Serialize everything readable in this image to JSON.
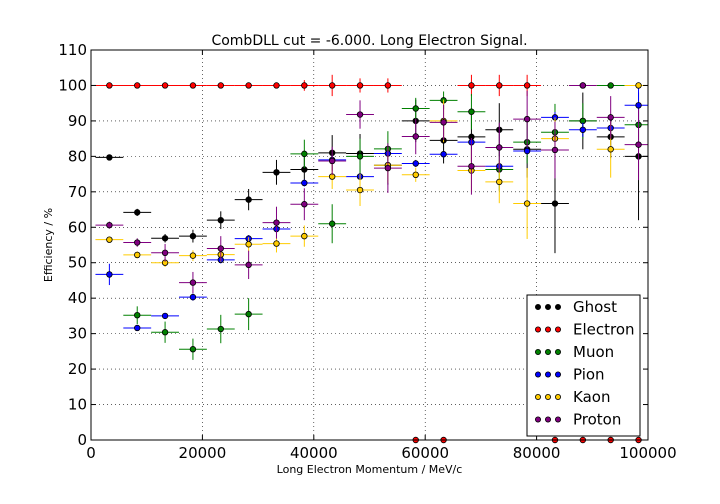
{
  "chart_data": {
    "type": "scatter",
    "title": "CombDLL cut = -6.000. Long Electron Signal.",
    "xlabel": "Long Electron Momentum / MeV/c",
    "ylabel": "Efficiency / %",
    "xlim": [
      0,
      100000
    ],
    "ylim": [
      0,
      110
    ],
    "xticks": [
      0,
      20000,
      40000,
      60000,
      80000,
      100000
    ],
    "yticks": [
      0,
      10,
      20,
      30,
      40,
      50,
      60,
      70,
      80,
      90,
      100,
      110
    ],
    "xerr": 2500,
    "grid": true,
    "legend_position": "bottom-right",
    "series": [
      {
        "name": "Ghost",
        "color": "#000000",
        "x": [
          3300,
          8300,
          13300,
          18300,
          23300,
          28300,
          33300,
          38300,
          43300,
          48300,
          53300,
          58300,
          63300,
          68300,
          73300,
          78300,
          83300,
          88300,
          93300,
          98300
        ],
        "y": [
          79.7,
          64.2,
          56.9,
          57.5,
          62.0,
          67.8,
          75.5,
          76.3,
          81.0,
          80.8,
          77.5,
          90.0,
          84.5,
          85.5,
          87.5,
          82.0,
          66.7,
          90.0,
          85.5,
          80.0
        ],
        "err": [
          0.5,
          1.0,
          1.2,
          1.8,
          2.5,
          3.0,
          3.5,
          4.0,
          5.0,
          5.5,
          5.5,
          6.0,
          6.5,
          7.0,
          7.5,
          8.0,
          14.0,
          8.0,
          6.0,
          18.0
        ]
      },
      {
        "name": "Electron",
        "color": "#ff0000",
        "x": [
          3300,
          8300,
          13300,
          18300,
          23300,
          28300,
          33300,
          38300,
          43300,
          48300,
          53300,
          58300,
          63300,
          68300,
          73300,
          78300,
          83300,
          88300,
          93300,
          98300
        ],
        "y": [
          100,
          100,
          100,
          100,
          100,
          100,
          100,
          100,
          100,
          100,
          100,
          0,
          0,
          100,
          100,
          100,
          0,
          0,
          0,
          0
        ],
        "err": [
          0,
          0,
          0,
          0,
          0,
          0,
          0,
          1.5,
          3.0,
          2.0,
          2.0,
          0,
          0,
          3.0,
          3.0,
          3.0,
          0,
          0,
          0,
          0
        ]
      },
      {
        "name": "Muon",
        "color": "#008000",
        "x": [
          8300,
          13300,
          18300,
          23300,
          28300,
          38300,
          43300,
          48300,
          53300,
          58300,
          63300,
          68300,
          73300,
          78300,
          83300,
          88300,
          93300,
          98300
        ],
        "y": [
          35.2,
          30.4,
          25.6,
          31.3,
          35.5,
          80.7,
          61.0,
          80.0,
          82.1,
          93.5,
          95.8,
          92.6,
          76.3,
          84.0,
          86.8,
          90.0,
          100,
          88.9
        ],
        "err": [
          2.5,
          3.0,
          3.0,
          4.0,
          4.5,
          4.0,
          5.5,
          5.0,
          5.0,
          3.0,
          2.5,
          5.0,
          6.0,
          6.0,
          8.0,
          5.0,
          0,
          6.0
        ]
      },
      {
        "name": "Pion",
        "color": "#0000ff",
        "x": [
          3300,
          8300,
          13300,
          18300,
          23300,
          28300,
          33300,
          38300,
          43300,
          48300,
          53300,
          58300,
          63300,
          68300,
          73300,
          78300,
          83300,
          88300,
          93300,
          98300
        ],
        "y": [
          46.7,
          31.6,
          35.0,
          40.3,
          50.8,
          56.8,
          59.5,
          72.5,
          79.0,
          74.3,
          80.8,
          78.0,
          80.6,
          84.0,
          77.2,
          81.5,
          91.0,
          87.5,
          88.0,
          94.4
        ],
        "err": [
          3.0,
          0.8,
          0.5,
          1.0,
          1.0,
          1.0,
          1.0,
          1.0,
          1.2,
          1.0,
          1.0,
          1.0,
          1.0,
          1.0,
          1.0,
          1.0,
          1.5,
          2.0,
          2.5,
          5.5
        ]
      },
      {
        "name": "Kaon",
        "color": "#ffcc00",
        "x": [
          3300,
          8300,
          13300,
          18300,
          23300,
          28300,
          33300,
          38300,
          43300,
          48300,
          53300,
          58300,
          63300,
          68300,
          73300,
          78300,
          83300,
          88300,
          93300,
          98300
        ],
        "y": [
          56.5,
          52.2,
          50.0,
          52.0,
          52.3,
          55.2,
          55.4,
          57.5,
          74.3,
          70.5,
          77.5,
          74.8,
          90.0,
          76.0,
          72.8,
          66.7,
          85.0,
          100,
          82.0,
          100
        ],
        "err": [
          0.8,
          1.0,
          1.2,
          1.5,
          2.0,
          2.0,
          2.5,
          3.0,
          3.5,
          4.5,
          5.0,
          2.0,
          6.0,
          6.0,
          6.0,
          10.0,
          6.0,
          0,
          8.0,
          0
        ]
      },
      {
        "name": "Proton",
        "color": "#800080",
        "x": [
          3300,
          8300,
          13300,
          18300,
          23300,
          28300,
          33300,
          38300,
          43300,
          48300,
          53300,
          58300,
          63300,
          68300,
          73300,
          78300,
          83300,
          88300,
          93300,
          98300
        ],
        "y": [
          60.6,
          55.7,
          52.8,
          44.4,
          54.0,
          49.4,
          61.3,
          66.5,
          78.7,
          91.8,
          76.7,
          85.6,
          89.6,
          77.2,
          82.5,
          90.5,
          81.8,
          100,
          91.0,
          83.3
        ],
        "err": [
          1.0,
          1.2,
          2.5,
          3.0,
          3.5,
          4.0,
          4.5,
          4.5,
          4.0,
          4.0,
          7.0,
          5.0,
          5.0,
          8.0,
          7.0,
          8.0,
          8.0,
          0,
          6.0,
          10.0
        ]
      }
    ]
  }
}
